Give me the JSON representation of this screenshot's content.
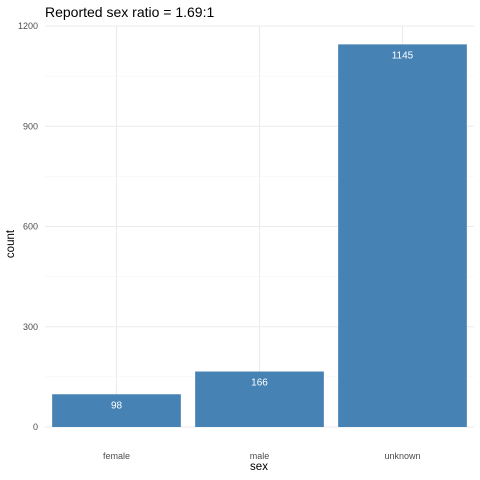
{
  "chart_data": {
    "type": "bar",
    "title": "Reported sex ratio = 1.69:1",
    "xlabel": "sex",
    "ylabel": "count",
    "categories": [
      "female",
      "male",
      "unknown"
    ],
    "values": [
      98,
      166,
      1145
    ],
    "data_labels": [
      "98",
      "166",
      "1145"
    ],
    "yticks": [
      0,
      300,
      600,
      900,
      1200
    ],
    "ytick_labels": [
      "0",
      "300",
      "600",
      "900",
      "1200"
    ],
    "ylim": [
      0,
      1200
    ],
    "grid": true,
    "legend": "none",
    "colors": {
      "bar": "#4682b4",
      "background": "#ffffff",
      "grid": "#ebebeb"
    }
  }
}
